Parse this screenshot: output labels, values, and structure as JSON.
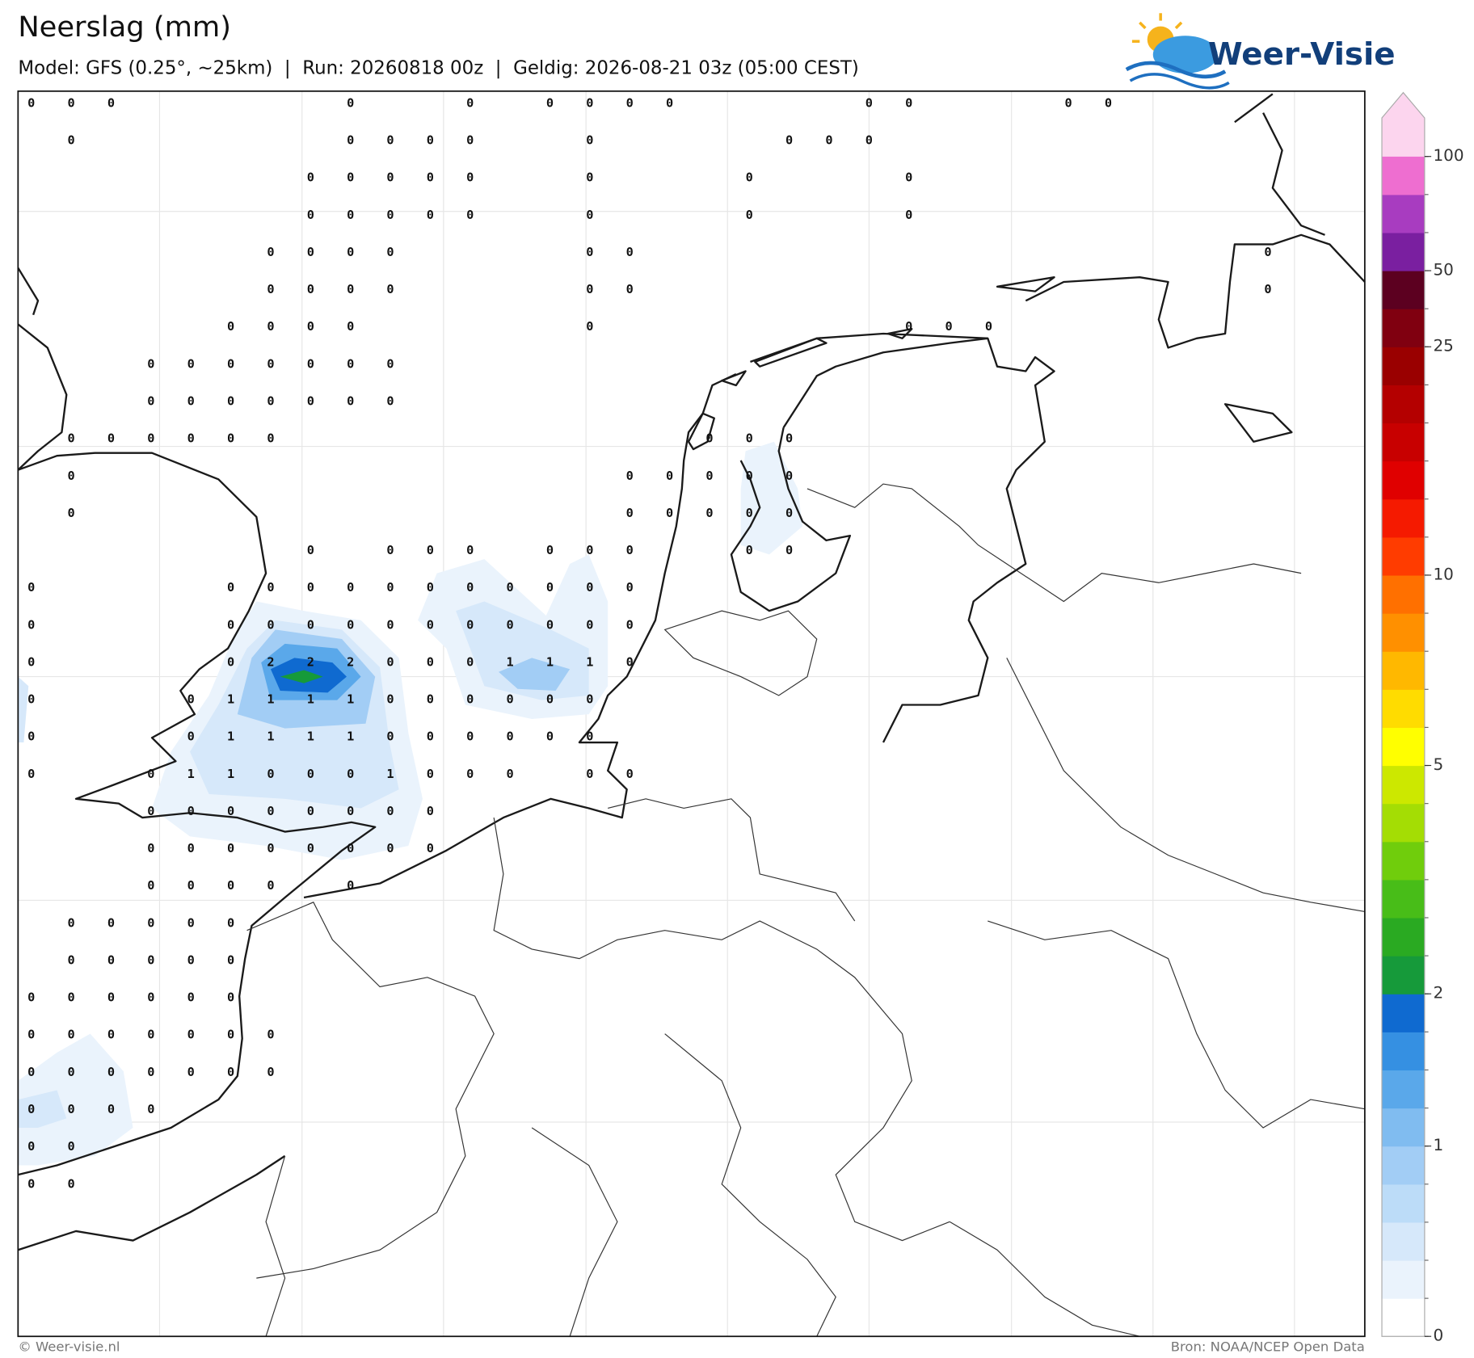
{
  "header": {
    "title": "Neerslag (mm)",
    "subtitle": "Model: GFS (0.25°, ~25km)  |  Run: 20260818 00z  |  Geldig: 2026-08-21 03z (05:00 CEST)",
    "logo": "Weer-Visie"
  },
  "map": {
    "grid": [
      [
        0,
        0,
        0,
        null,
        null,
        null,
        null,
        null,
        0,
        null,
        null,
        0,
        null,
        0,
        0,
        0,
        0,
        null,
        null,
        null,
        null,
        0,
        0,
        null,
        null,
        null,
        0,
        0
      ],
      [
        null,
        0,
        null,
        null,
        null,
        null,
        null,
        null,
        0,
        0,
        0,
        0,
        null,
        null,
        0,
        null,
        null,
        null,
        null,
        0,
        0,
        0
      ],
      [
        null,
        null,
        null,
        null,
        null,
        null,
        null,
        0,
        0,
        0,
        0,
        0,
        null,
        null,
        0,
        null,
        null,
        null,
        0,
        null,
        null,
        null,
        0
      ],
      [
        null,
        null,
        null,
        null,
        null,
        null,
        null,
        0,
        0,
        0,
        0,
        0,
        null,
        null,
        0,
        null,
        null,
        null,
        0,
        null,
        null,
        null,
        0
      ],
      [
        null,
        null,
        null,
        null,
        null,
        null,
        0,
        0,
        0,
        0,
        null,
        null,
        null,
        null,
        0,
        0,
        null,
        null,
        null,
        null,
        null,
        null,
        null,
        null,
        null,
        null,
        null,
        null,
        null,
        null,
        null,
        0
      ],
      [
        null,
        null,
        null,
        null,
        null,
        null,
        0,
        0,
        0,
        0,
        null,
        null,
        null,
        null,
        0,
        0,
        null,
        null,
        null,
        null,
        null,
        null,
        null,
        null,
        null,
        null,
        null,
        null,
        null,
        null,
        null,
        0
      ],
      [
        null,
        null,
        null,
        null,
        null,
        0,
        0,
        0,
        0,
        null,
        null,
        null,
        null,
        null,
        0,
        null,
        null,
        null,
        null,
        null,
        null,
        null,
        0,
        0,
        0
      ],
      [
        null,
        null,
        null,
        0,
        0,
        0,
        0,
        0,
        0,
        0
      ],
      [
        null,
        null,
        null,
        0,
        0,
        0,
        0,
        0,
        0,
        0
      ],
      [
        null,
        0,
        0,
        0,
        0,
        0,
        0,
        null,
        null,
        null,
        null,
        null,
        null,
        null,
        null,
        null,
        null,
        0,
        0,
        0
      ],
      [
        null,
        0,
        null,
        null,
        null,
        null,
        null,
        null,
        null,
        null,
        null,
        null,
        null,
        null,
        null,
        0,
        0,
        0,
        0,
        0
      ],
      [
        null,
        0,
        null,
        null,
        null,
        null,
        null,
        null,
        null,
        null,
        null,
        null,
        null,
        null,
        null,
        0,
        0,
        0,
        0,
        0
      ],
      [
        null,
        null,
        null,
        null,
        null,
        null,
        null,
        0,
        null,
        0,
        0,
        0,
        null,
        0,
        0,
        0,
        null,
        null,
        0,
        0
      ],
      [
        0,
        null,
        null,
        null,
        null,
        0,
        0,
        0,
        0,
        0,
        0,
        0,
        0,
        0,
        0,
        0
      ],
      [
        0,
        null,
        null,
        null,
        null,
        0,
        0,
        0,
        0,
        0,
        0,
        0,
        0,
        0,
        0,
        0
      ],
      [
        0,
        null,
        null,
        null,
        null,
        0,
        2,
        2,
        2,
        0,
        0,
        0,
        1,
        1,
        1,
        0
      ],
      [
        0,
        null,
        null,
        null,
        0,
        1,
        1,
        1,
        1,
        0,
        0,
        0,
        0,
        0,
        0
      ],
      [
        0,
        null,
        null,
        null,
        0,
        1,
        1,
        1,
        1,
        0,
        0,
        0,
        0,
        0,
        0
      ],
      [
        0,
        null,
        null,
        0,
        1,
        1,
        0,
        0,
        0,
        1,
        0,
        0,
        0,
        null,
        0,
        0
      ],
      [
        null,
        null,
        null,
        0,
        0,
        0,
        0,
        0,
        0,
        0,
        0
      ],
      [
        null,
        null,
        null,
        0,
        0,
        0,
        0,
        0,
        0,
        0,
        0
      ],
      [
        null,
        null,
        null,
        0,
        0,
        0,
        0,
        null,
        0
      ],
      [
        null,
        0,
        0,
        0,
        0,
        0
      ],
      [
        null,
        0,
        0,
        0,
        0,
        0
      ],
      [
        0,
        0,
        0,
        0,
        0,
        0
      ],
      [
        0,
        0,
        0,
        0,
        0,
        0,
        0
      ],
      [
        0,
        0,
        0,
        0,
        0,
        0,
        0
      ],
      [
        0,
        0,
        0,
        0
      ],
      [
        0,
        0
      ],
      [
        0,
        0
      ]
    ]
  },
  "colorbar": {
    "levels": [
      0,
      0.2,
      0.4,
      0.6,
      0.8,
      1,
      1.25,
      1.5,
      1.75,
      2,
      2.5,
      3,
      3.5,
      4,
      4.5,
      5,
      6,
      7,
      8,
      9,
      10,
      12,
      14,
      16,
      18,
      20,
      25,
      35,
      50,
      65,
      80,
      100
    ],
    "colors": [
      "#ffffff",
      "#eaf3fc",
      "#d6e8fa",
      "#bcdcf8",
      "#a2cdf5",
      "#80bcf0",
      "#5aa8ea",
      "#3590e2",
      "#0f6ad0",
      "#169a3a",
      "#2aaa22",
      "#48bd18",
      "#70cd0c",
      "#a4dd04",
      "#cce800",
      "#ffff00",
      "#ffdc00",
      "#ffb800",
      "#ff9000",
      "#ff7000",
      "#ff3c00",
      "#f51a00",
      "#e00000",
      "#c80000",
      "#b40000",
      "#9a0000",
      "#800010",
      "#5c0020",
      "#7a1fa0",
      "#a83cc0",
      "#ee6ed0",
      "#fcd5ee"
    ],
    "ticks": [
      0,
      1,
      2,
      5,
      10,
      25,
      50,
      100
    ]
  },
  "footer": {
    "left": "© Weer-visie.nl",
    "right": "Bron: NOAA/NCEP Open Data"
  }
}
